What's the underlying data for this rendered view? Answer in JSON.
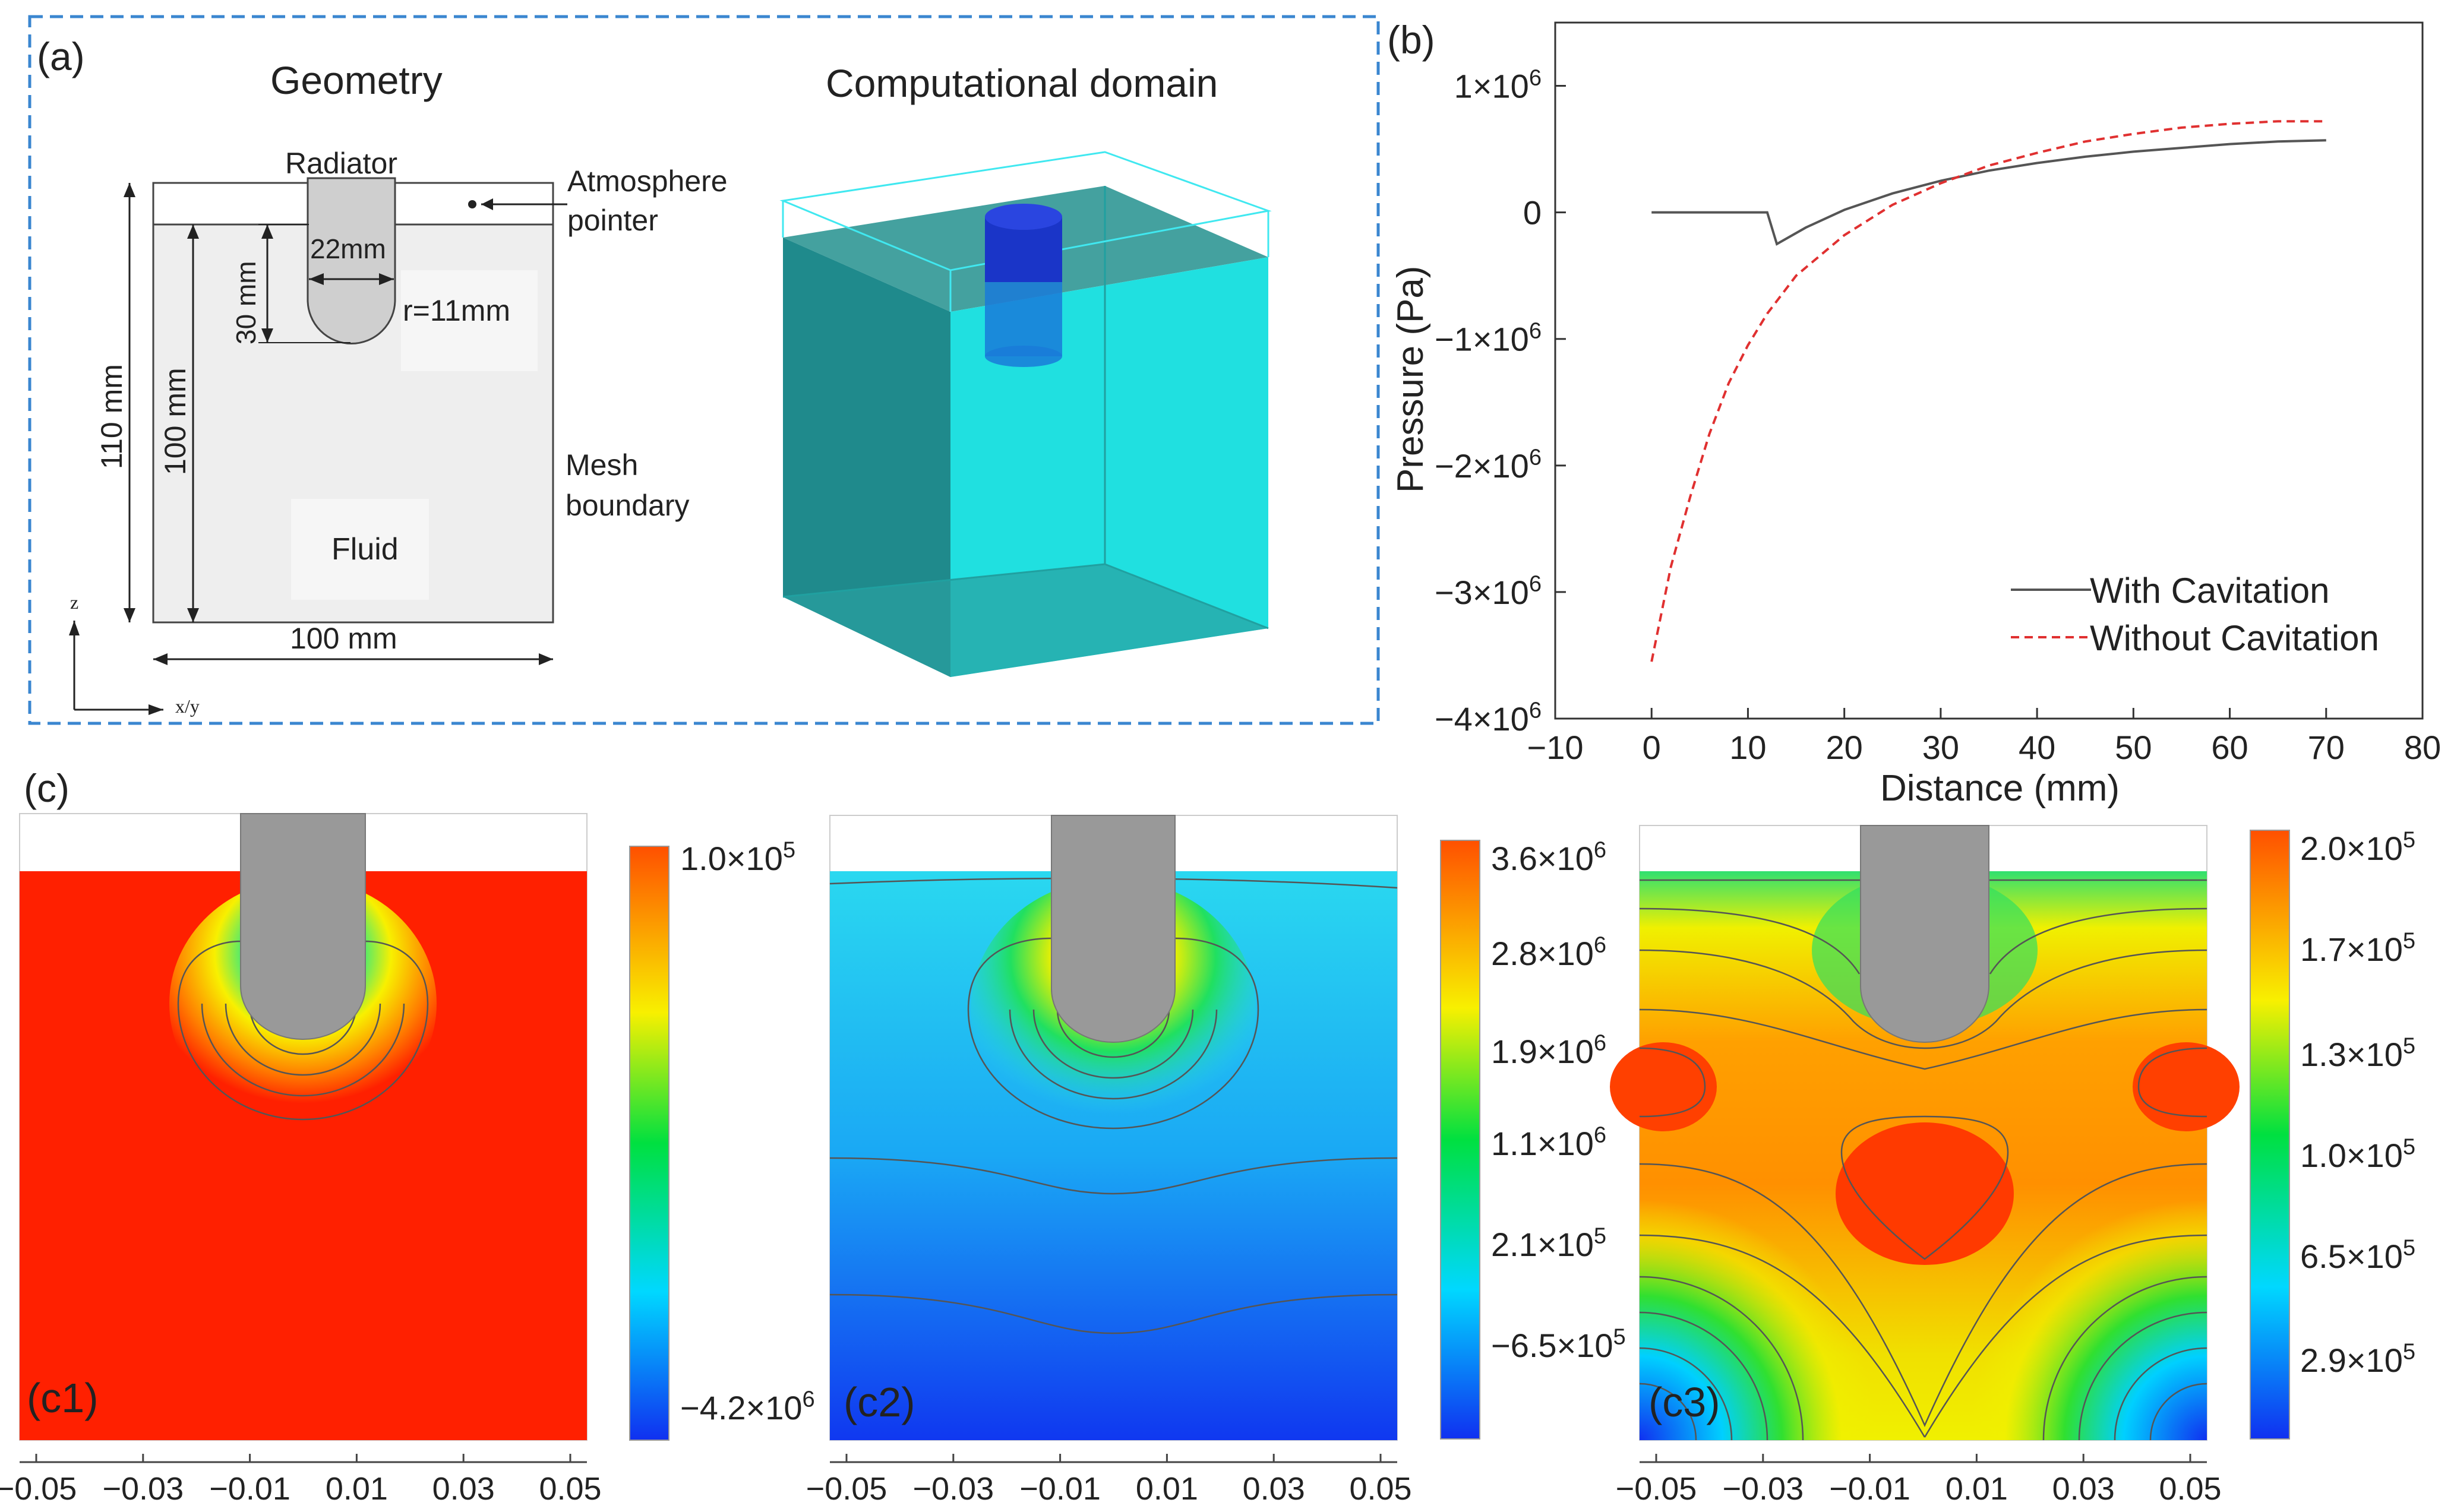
{
  "panel_a": {
    "label": "(a)",
    "geometry_title": "Geometry",
    "domain_title": "Computational domain",
    "radiator": "Radiator",
    "atmosphere_line1": "Atmosphere",
    "atmosphere_line2": "pointer",
    "dim_22": "22mm",
    "dim_30": "30 mm",
    "dim_r": "r=11mm",
    "dim_110": "110 mm",
    "dim_100v": "100 mm",
    "dim_100h": "100 mm",
    "mesh_line1": "Mesh",
    "mesh_line2": "boundary",
    "fluid": "Fluid",
    "axis_z": "z",
    "axis_xy": "x/y"
  },
  "panel_b": {
    "label": "(b)",
    "ylabel": "Pressure (Pa)",
    "xlabel": "Distance (mm)",
    "x_ticks": [
      "−10",
      "0",
      "10",
      "20",
      "30",
      "40",
      "50",
      "60",
      "70",
      "80"
    ],
    "y_ticks": [
      {
        "mant": "1×10",
        "exp": "6",
        "value": 1000000
      },
      {
        "mant": "0",
        "exp": "",
        "value": 0
      },
      {
        "mant": "−1×10",
        "exp": "6",
        "value": -1000000
      },
      {
        "mant": "−2×10",
        "exp": "6",
        "value": -2000000
      },
      {
        "mant": "−3×10",
        "exp": "6",
        "value": -3000000
      },
      {
        "mant": "−4×10",
        "exp": "6",
        "value": -4000000
      }
    ],
    "legend": [
      "With Cavitation",
      "Without Cavitation"
    ]
  },
  "chart_data": {
    "type": "line",
    "title": "",
    "xlabel": "Distance (mm)",
    "ylabel": "Pressure (Pa)",
    "xlim": [
      -10,
      80
    ],
    "ylim": [
      -4000000,
      1500000
    ],
    "legend_position": "bottom-right",
    "series": [
      {
        "name": "With Cavitation",
        "color": "#555555",
        "style": "solid",
        "x": [
          0,
          5,
          10,
          12,
          13,
          16,
          20,
          25,
          30,
          35,
          40,
          45,
          50,
          55,
          60,
          65,
          70
        ],
        "y": [
          0,
          0,
          0,
          0,
          -250000,
          -120000,
          20000,
          150000,
          250000,
          330000,
          390000,
          440000,
          480000,
          510000,
          540000,
          560000,
          570000
        ]
      },
      {
        "name": "Without Cavitation",
        "color": "#e03030",
        "style": "dashed",
        "x": [
          0,
          2,
          4,
          6,
          8,
          10,
          12,
          15,
          20,
          25,
          30,
          35,
          40,
          45,
          50,
          55,
          60,
          65,
          70
        ],
        "y": [
          -3550000,
          -2800000,
          -2250000,
          -1750000,
          -1350000,
          -1050000,
          -800000,
          -500000,
          -180000,
          60000,
          230000,
          370000,
          470000,
          560000,
          620000,
          670000,
          700000,
          720000,
          720000
        ]
      }
    ]
  },
  "panel_c": {
    "label": "(c)",
    "x_ticks": [
      "−0.05",
      "−0.03",
      "−0.01",
      "0.01",
      "0.03",
      "0.05"
    ],
    "plots": [
      {
        "label": "(c1)",
        "scale": [
          {
            "mant": "1.0×10",
            "exp": "5"
          },
          {
            "mant": "−4.2×10",
            "exp": "6"
          }
        ]
      },
      {
        "label": "(c2)",
        "scale": [
          {
            "mant": "3.6×10",
            "exp": "6"
          },
          {
            "mant": "2.8×10",
            "exp": "6"
          },
          {
            "mant": "1.9×10",
            "exp": "6"
          },
          {
            "mant": "1.1×10",
            "exp": "6"
          },
          {
            "mant": "2.1×10",
            "exp": "5"
          },
          {
            "mant": "−6.5×10",
            "exp": "5"
          }
        ]
      },
      {
        "label": "(c3)",
        "scale": [
          {
            "mant": "2.0×10",
            "exp": "5"
          },
          {
            "mant": "1.7×10",
            "exp": "5"
          },
          {
            "mant": "1.3×10",
            "exp": "5"
          },
          {
            "mant": "1.0×10",
            "exp": "5"
          },
          {
            "mant": "6.5×10",
            "exp": "5"
          },
          {
            "mant": "2.9×10",
            "exp": "5"
          }
        ]
      }
    ]
  },
  "colors": {
    "frame_dashed": "#3a86d0",
    "cyan_fluid": "#35d8dc",
    "radiator_blue": "#1a35c8",
    "red_field": "#ff2000",
    "probe_gray": "#999999"
  }
}
